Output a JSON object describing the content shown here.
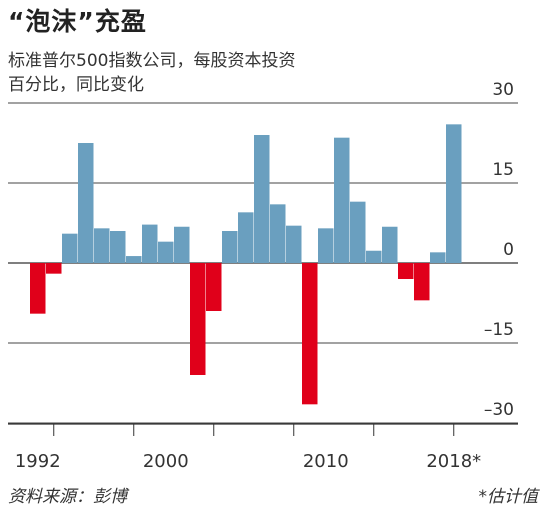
{
  "header": {
    "title": "“泡沫”充盈",
    "subtitle_line1": "标准普尔500指数公司，每股资本投资",
    "subtitle_line2": "百分比，同比变化"
  },
  "footer": {
    "source": "资料来源：彭博",
    "note": "*估计值"
  },
  "chart_data": {
    "type": "bar",
    "title": "“泡沫”充盈",
    "subtitle": "标准普尔500指数公司，每股资本投资 百分比，同比变化",
    "xlabel": "",
    "ylabel": "",
    "x_tick_labels": [
      "1992",
      "2000",
      "2010",
      "2018*"
    ],
    "y_ticks": [
      30,
      15,
      0,
      -15,
      -30
    ],
    "y_tick_labels": [
      "30",
      "15",
      "0",
      "–15",
      "–30"
    ],
    "ylim": [
      -32,
      31
    ],
    "grid": true,
    "categories": [
      "1992",
      "1993",
      "1994",
      "1995",
      "1996",
      "1997",
      "1998",
      "1999",
      "2000",
      "2001",
      "2002",
      "2003",
      "2004",
      "2005",
      "2006",
      "2007",
      "2008",
      "2009",
      "2010",
      "2011",
      "2012",
      "2013",
      "2014",
      "2015",
      "2016",
      "2017",
      "2018*"
    ],
    "values": [
      -9.5,
      -2,
      5.5,
      22.5,
      6.5,
      6,
      1.3,
      7.2,
      4,
      6.8,
      -21,
      -9,
      6,
      9.5,
      24,
      11,
      7,
      -26.5,
      6.5,
      23.5,
      11.5,
      2.3,
      6.8,
      -3,
      -7,
      2,
      26
    ],
    "positive_color": "#6a9fbf",
    "negative_color": "#e0001a"
  }
}
